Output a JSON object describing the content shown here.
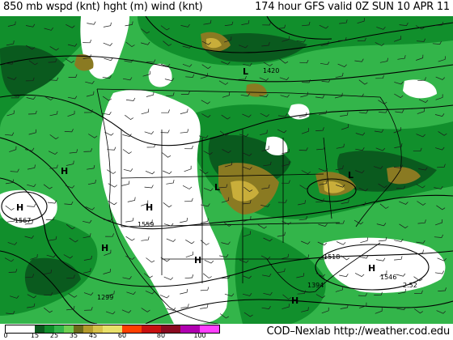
{
  "header": {
    "title_left": "850 mb wspd (knt) hght (m) wind (knt)",
    "title_right": "174 hour GFS valid 0Z SUN 10 APR 11"
  },
  "legend": {
    "units": "knt",
    "bins": [
      {
        "from": 0,
        "to": 15,
        "color": "#ffffff"
      },
      {
        "from": 15,
        "to": 20,
        "color": "#0a5a1e"
      },
      {
        "from": 20,
        "to": 25,
        "color": "#118f2c"
      },
      {
        "from": 25,
        "to": 30,
        "color": "#33b54a"
      },
      {
        "from": 30,
        "to": 35,
        "color": "#6fcf52"
      },
      {
        "from": 35,
        "to": 40,
        "color": "#6b6a1a"
      },
      {
        "from": 40,
        "to": 45,
        "color": "#b49a2c"
      },
      {
        "from": 45,
        "to": 50,
        "color": "#d8c24a"
      },
      {
        "from": 50,
        "to": 60,
        "color": "#e8e06a"
      },
      {
        "from": 60,
        "to": 70,
        "color": "#ff4000"
      },
      {
        "from": 70,
        "to": 80,
        "color": "#c81010"
      },
      {
        "from": 80,
        "to": 90,
        "color": "#8a0a20"
      },
      {
        "from": 90,
        "to": 100,
        "color": "#b000b0"
      },
      {
        "from": 100,
        "to": 110,
        "color": "#ff40ff"
      }
    ],
    "tick_labels": [
      "0",
      "15",
      "25",
      "35",
      "45",
      "60",
      "80",
      "100"
    ],
    "credit": "COD–Nexlab http://weather.cod.edu"
  },
  "map": {
    "region": "North America",
    "highs": [
      {
        "label": "H"
      },
      {
        "label": "H"
      },
      {
        "label": "H"
      },
      {
        "label": "H"
      },
      {
        "label": "H"
      },
      {
        "label": "H"
      },
      {
        "label": "H"
      }
    ],
    "lows": [
      {
        "label": "L"
      },
      {
        "label": "L"
      },
      {
        "label": "L"
      }
    ],
    "height_labels": [
      "1567",
      "1299",
      "1546",
      "1518",
      "1420",
      "2.52",
      "1394",
      "1559"
    ]
  }
}
